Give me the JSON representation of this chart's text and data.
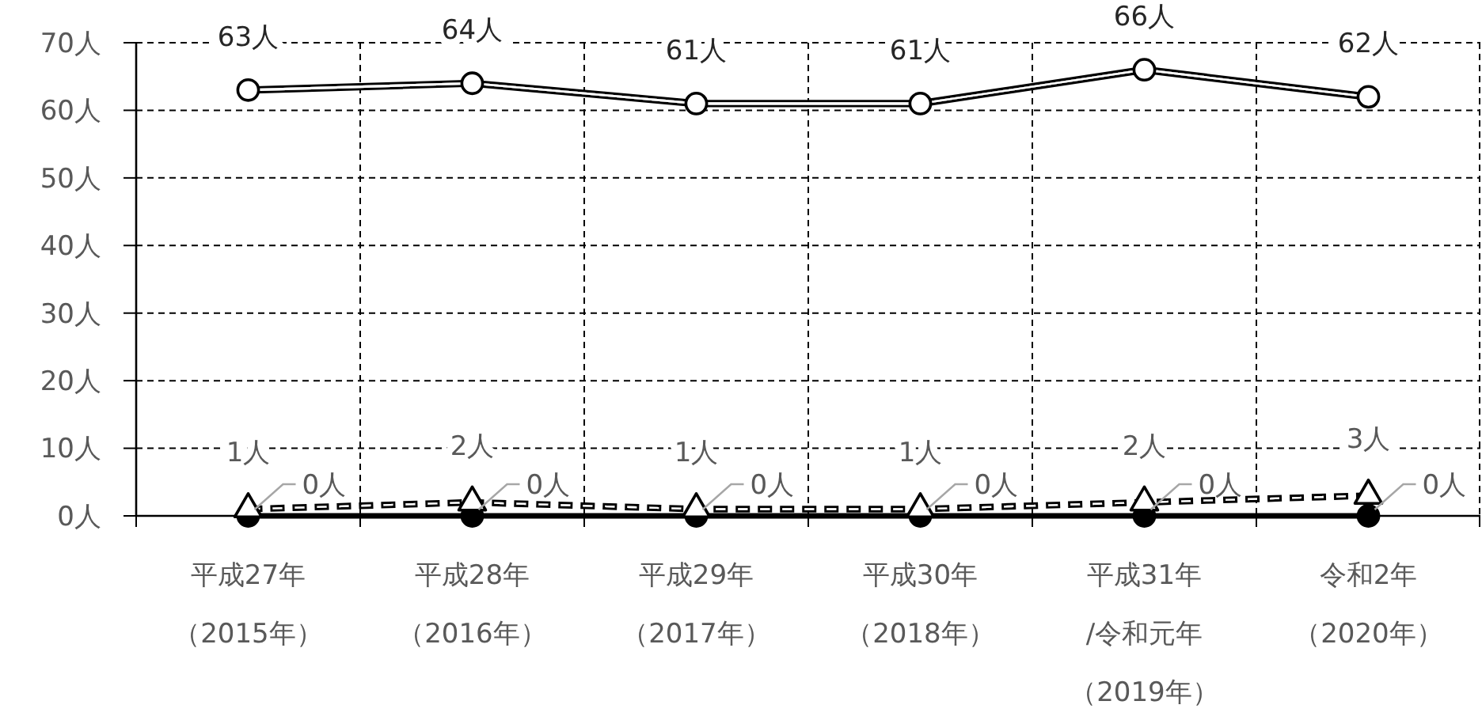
{
  "chart_data": {
    "type": "line",
    "categories": [
      "平成27年（2015年）",
      "平成28年（2016年）",
      "平成29年（2017年）",
      "平成30年（2018年）",
      "平成31年/令和元年（2019年）",
      "令和2年（2020年）"
    ],
    "ylim": [
      0,
      70
    ],
    "yticks": [
      {
        "value": 0,
        "label": "0人"
      },
      {
        "value": 10,
        "label": "10人"
      },
      {
        "value": 20,
        "label": "20人"
      },
      {
        "value": 30,
        "label": "30人"
      },
      {
        "value": 40,
        "label": "40人"
      },
      {
        "value": 50,
        "label": "50人"
      },
      {
        "value": 60,
        "label": "60人"
      },
      {
        "value": 70,
        "label": "70人"
      }
    ],
    "grid": true,
    "series": [
      {
        "color": "#000000",
        "marker": "circle",
        "line_style": "solid",
        "values": [
          63,
          64,
          61,
          61,
          66,
          62
        ],
        "value_labels": [
          "63人",
          "64人",
          "61人",
          "61人",
          "66人",
          "62人"
        ]
      },
      {
        "color": "#000000",
        "marker": "triangle",
        "line_style": "dashed",
        "values": [
          1,
          2,
          1,
          1,
          2,
          3
        ],
        "value_labels": [
          "1人",
          "2人",
          "1人",
          "1人",
          "2人",
          "3人"
        ]
      },
      {
        "color": "#000000",
        "marker": "circle",
        "line_style": "solid",
        "values": [
          0,
          0,
          0,
          0,
          0,
          0
        ],
        "value_labels": [
          "0人",
          "0人",
          "0人",
          "0人",
          "0人",
          "0人"
        ]
      }
    ]
  }
}
